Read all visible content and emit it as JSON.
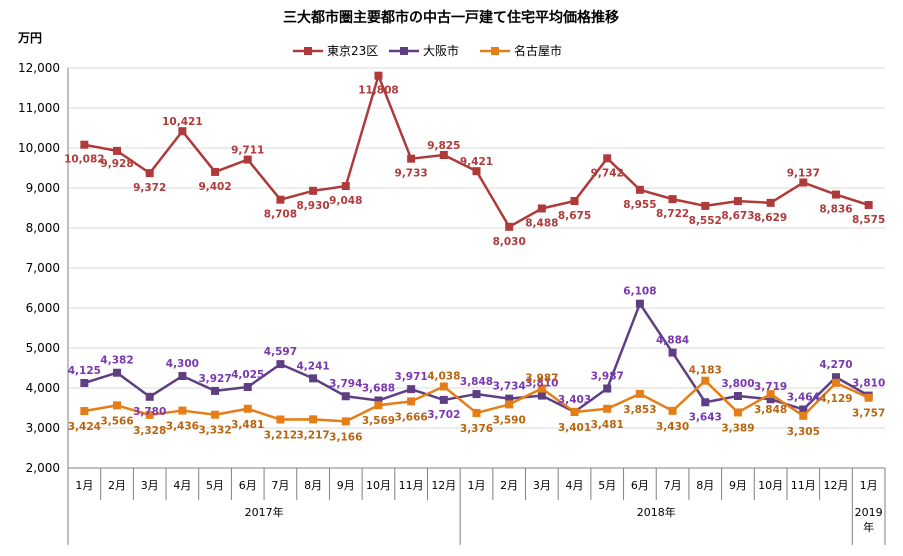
{
  "chart_data": {
    "type": "line",
    "title": "三大都市圏主要都市の中古一戸建て住宅平均価格推移",
    "unit_label": "万円",
    "ylim": [
      2000,
      12000
    ],
    "yticks": [
      "2,000",
      "3,000",
      "4,000",
      "5,000",
      "6,000",
      "7,000",
      "8,000",
      "9,000",
      "10,000",
      "11,000",
      "12,000"
    ],
    "categories": [
      "1月",
      "2月",
      "3月",
      "4月",
      "5月",
      "6月",
      "7月",
      "8月",
      "9月",
      "10月",
      "11月",
      "12月",
      "1月",
      "2月",
      "3月",
      "4月",
      "5月",
      "6月",
      "7月",
      "8月",
      "9月",
      "10月",
      "11月",
      "12月",
      "1月"
    ],
    "year_groups": [
      {
        "label": "2017年",
        "count": 12
      },
      {
        "label": "2018年",
        "count": 12
      },
      {
        "label": "2019\n年",
        "count": 1
      }
    ],
    "legend_position": "top",
    "series": [
      {
        "name": "東京23区",
        "color": "#B03A3A",
        "marker": "square",
        "values": [
          10082,
          9928,
          9372,
          10421,
          9402,
          9711,
          8708,
          8930,
          9048,
          11808,
          9733,
          9825,
          9421,
          8030,
          8488,
          8675,
          9742,
          8955,
          8722,
          8552,
          8673,
          8629,
          9137,
          8836,
          8575
        ],
        "labels": [
          "10,082",
          "9,928",
          "9,372",
          "10,421",
          "9,402",
          "9,711",
          "8,708",
          "8,930",
          "9,048",
          "11,808",
          "9,733",
          "9,825",
          "9,421",
          "8,030",
          "8,488",
          "8,675",
          "9,742",
          "8,955",
          "8,722",
          "8,552",
          "8,673",
          "8,629",
          "9,137",
          "8,836",
          "8,575"
        ]
      },
      {
        "name": "大阪市",
        "color": "#5E3F84",
        "label_color": "#7A37B0",
        "marker": "square",
        "values": [
          4125,
          4382,
          3780,
          4300,
          3927,
          4025,
          4597,
          4241,
          3794,
          3688,
          3971,
          3702,
          3848,
          3734,
          3810,
          3403,
          3987,
          6108,
          4884,
          3643,
          3800,
          3719,
          3464,
          4270,
          3810
        ],
        "labels": [
          "4,125",
          "4,382",
          "3,780",
          "4,300",
          "3,927",
          "4,025",
          "4,597",
          "4,241",
          "3,794",
          "3,688",
          "3,971",
          "3,702",
          "3,848",
          "3,734",
          "3,810",
          "3,403",
          "3,987",
          "6,108",
          "4,884",
          "3,643",
          "3,800",
          "3,719",
          "3,464",
          "4,270",
          "3,810"
        ]
      },
      {
        "name": "名古屋市",
        "color": "#E67E17",
        "label_color": "#B8650E",
        "marker": "square",
        "values": [
          3424,
          3566,
          3328,
          3436,
          3332,
          3481,
          3212,
          3217,
          3166,
          3569,
          3666,
          4038,
          3376,
          3590,
          3987,
          3401,
          3481,
          3853,
          3430,
          4183,
          3389,
          3848,
          3305,
          4129,
          3757
        ],
        "labels": [
          "3,424",
          "3,566",
          "3,328",
          "3,436",
          "3,332",
          "3,481",
          "3,212",
          "3,217",
          "3,166",
          "3,569",
          "3,666",
          "4,038",
          "3,376",
          "3,590",
          "3,987",
          "3,401",
          "3,481",
          "3,853",
          "3,430",
          "4,183",
          "3,389",
          "3,848",
          "3,305",
          "4,129",
          "3,757"
        ]
      }
    ]
  }
}
